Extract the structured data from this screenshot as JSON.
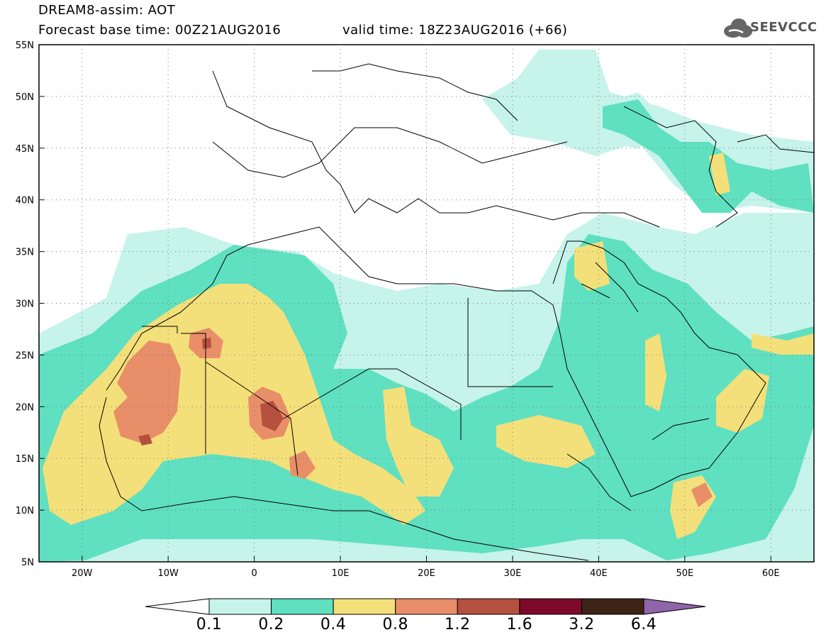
{
  "header": {
    "title": "DREAM8-assim: AOT",
    "forecast_base": "Forecast base time: 00Z21AUG2016",
    "valid_time": "valid time: 18Z23AUG2016 (+66)"
  },
  "logo": {
    "text": "SEEVCCC",
    "icon": "cloud-icon"
  },
  "map": {
    "lon_range": [
      -25,
      65
    ],
    "lat_range": [
      5,
      55
    ],
    "lat_ticks": [
      "55N",
      "50N",
      "45N",
      "40N",
      "35N",
      "30N",
      "25N",
      "20N",
      "15N",
      "10N",
      "5N"
    ],
    "lon_ticks": [
      "20W",
      "10W",
      "0",
      "10E",
      "20E",
      "30E",
      "40E",
      "50E",
      "60E"
    ]
  },
  "colorbar": {
    "labels": [
      "0.1",
      "0.2",
      "0.4",
      "0.8",
      "1.2",
      "1.6",
      "3.2",
      "6.4"
    ],
    "colors": [
      "#c6f3ea",
      "#5fe0c0",
      "#f4e07a",
      "#e88e68",
      "#b5503e",
      "#7e0a2a",
      "#3e2416",
      "#8f64a8"
    ]
  }
}
